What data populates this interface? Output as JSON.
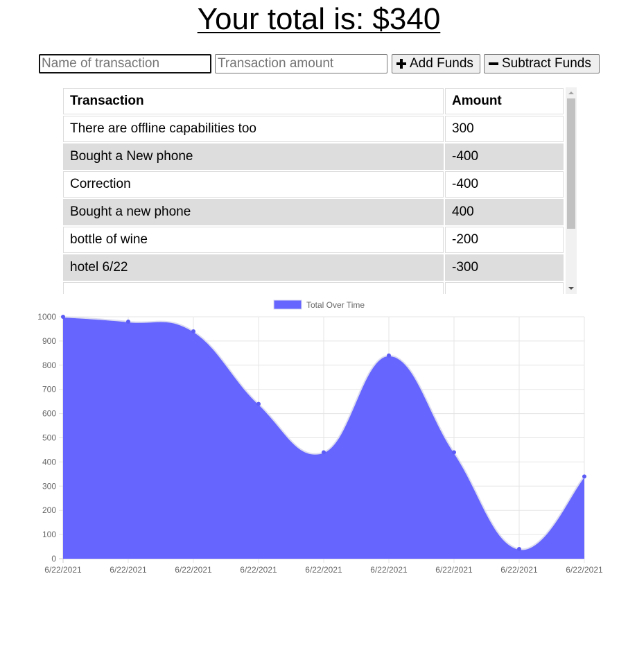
{
  "header": {
    "total_text": "Your total is: $340"
  },
  "form": {
    "name_placeholder": "Name of transaction",
    "amount_placeholder": "Transaction amount",
    "add_label": "Add Funds",
    "subtract_label": "Subtract Funds",
    "add_icon": "plus-icon",
    "subtract_icon": "minus-icon"
  },
  "table": {
    "headers": [
      "Transaction",
      "Amount"
    ],
    "rows": [
      {
        "name": "There are offline capabilities too",
        "amount": "300"
      },
      {
        "name": "Bought a New phone",
        "amount": "-400"
      },
      {
        "name": "Correction",
        "amount": "-400"
      },
      {
        "name": "Bought a new phone",
        "amount": "400"
      },
      {
        "name": "bottle of wine",
        "amount": "-200"
      },
      {
        "name": "hotel 6/22",
        "amount": "-300"
      }
    ]
  },
  "colors": {
    "area_fill": "#6666ff",
    "line": "#dcdcf0",
    "point": "#5c5cf5",
    "grid": "#e5e5e5",
    "row_alt": "#dddddd"
  },
  "chart_data": {
    "type": "area",
    "legend": "Total Over Time",
    "legend_position": "top",
    "x": [
      "6/22/2021",
      "6/22/2021",
      "6/22/2021",
      "6/22/2021",
      "6/22/2021",
      "6/22/2021",
      "6/22/2021",
      "6/22/2021",
      "6/22/2021"
    ],
    "series": [
      {
        "name": "Total Over Time",
        "values": [
          1000,
          980,
          940,
          640,
          440,
          840,
          440,
          40,
          340
        ]
      }
    ],
    "ylim": [
      0,
      1000
    ],
    "yticks": [
      0,
      100,
      200,
      300,
      400,
      500,
      600,
      700,
      800,
      900,
      1000
    ],
    "grid": true
  }
}
